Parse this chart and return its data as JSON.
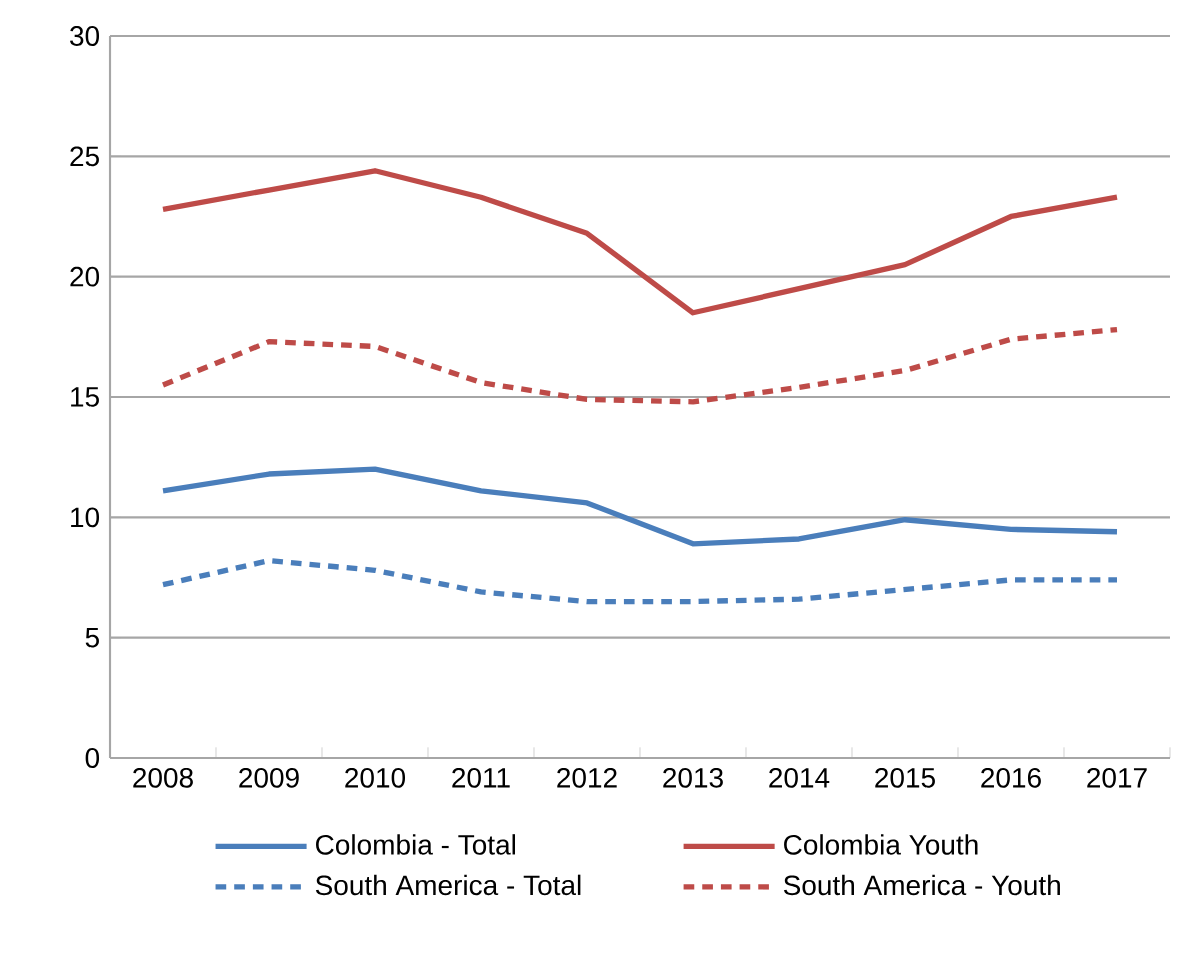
{
  "chart_data": {
    "type": "line",
    "categories": [
      "2008",
      "2009",
      "2010",
      "2011",
      "2012",
      "2013",
      "2014",
      "2015",
      "2016",
      "2017"
    ],
    "series": [
      {
        "name": "Colombia - Total",
        "color": "#4a7ebb",
        "line_style": "solid",
        "values": [
          11.1,
          11.8,
          12.0,
          11.1,
          10.6,
          8.9,
          9.1,
          9.9,
          9.5,
          9.4
        ]
      },
      {
        "name": "Colombia Youth",
        "color": "#be4b48",
        "line_style": "solid",
        "values": [
          22.8,
          23.6,
          24.4,
          23.3,
          21.8,
          18.5,
          19.5,
          20.5,
          22.5,
          23.3
        ]
      },
      {
        "name": "South America - Total",
        "color": "#4a7ebb",
        "line_style": "dashed",
        "values": [
          7.2,
          8.2,
          7.8,
          6.9,
          6.5,
          6.5,
          6.6,
          7.0,
          7.4,
          7.4
        ]
      },
      {
        "name": "South America - Youth",
        "color": "#be4b48",
        "line_style": "dashed",
        "values": [
          15.5,
          17.3,
          17.1,
          15.6,
          14.9,
          14.8,
          15.4,
          16.1,
          17.4,
          17.8
        ]
      }
    ],
    "ylim": [
      0,
      30
    ],
    "yticks": [
      0,
      5,
      10,
      15,
      20,
      25,
      30
    ],
    "grid": "y",
    "legend": "bottom"
  }
}
